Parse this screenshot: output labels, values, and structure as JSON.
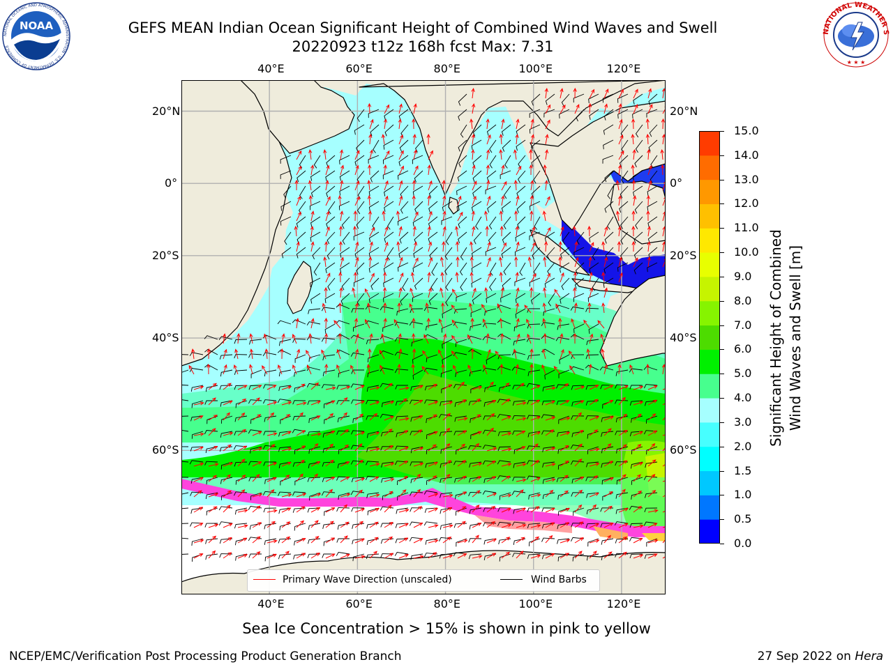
{
  "header": {
    "title_line1": "GEFS MEAN Indian Ocean Significant Height of Combined Wind Waves and Swell",
    "title_line2": "20220923 t12z 168h fcst   Max: 7.31"
  },
  "logos": {
    "noaa": {
      "icon": "noaa-logo",
      "text": "NOAA",
      "ring_text": "NATIONAL OCEANIC AND ATMOSPHERIC ADMINISTRATION · U.S. DEPARTMENT OF COMMERCE"
    },
    "nws": {
      "icon": "nws-logo",
      "ring_text": "NATIONAL WEATHER SERVICE"
    }
  },
  "map": {
    "lon_labels": [
      "40°E",
      "60°E",
      "80°E",
      "100°E",
      "120°E"
    ],
    "lat_labels": [
      "20°N",
      "0°",
      "20°S",
      "40°S",
      "60°S"
    ],
    "lon_values": [
      40,
      60,
      80,
      100,
      120
    ],
    "lat_values": [
      20,
      0,
      -20,
      -40,
      -60
    ],
    "extent": {
      "lon_min": 20,
      "lon_max": 130,
      "lat_min": -75,
      "lat_max": 28
    },
    "land_color": "#efecdc",
    "ocean_base_color": "#a6ffff",
    "grid_color": "#b0b0b0",
    "wave_dir_color": "#ff0000",
    "wind_barb_color": "#000000",
    "ice_colors": [
      "#ff44dd",
      "#ffa0a0",
      "#ffb060",
      "#ffd040"
    ]
  },
  "legend": {
    "primary_wave": "Primary Wave Direction (unscaled)",
    "wind_barbs": "Wind Barbs"
  },
  "colorbar": {
    "label_line1": "Significant Height of Combined",
    "label_line2": "Wind Waves and Swell [m]",
    "ticks": [
      "0.0",
      "0.5",
      "1.0",
      "1.5",
      "2.0",
      "3.0",
      "4.0",
      "5.0",
      "6.0",
      "7.0",
      "8.0",
      "9.0",
      "10.0",
      "11.0",
      "12.0",
      "13.0",
      "14.0",
      "15.0"
    ],
    "colors": [
      "#0000ff",
      "#0077ff",
      "#00c8ff",
      "#00ffff",
      "#47ffff",
      "#a6ffff",
      "#47ff8e",
      "#00f000",
      "#4ddc00",
      "#86f400",
      "#c6f400",
      "#e8ff00",
      "#ffe800",
      "#ffc000",
      "#ff9800",
      "#ff6c00",
      "#ff3c00",
      "#ff0000"
    ]
  },
  "caption": "Sea Ice Concentration > 15% is shown in pink to yellow",
  "footer": {
    "left": "NCEP/EMC/Verification Post Processing Product Generation Branch",
    "right_date": "27 Sep 2022 on ",
    "right_host": "Hera"
  }
}
